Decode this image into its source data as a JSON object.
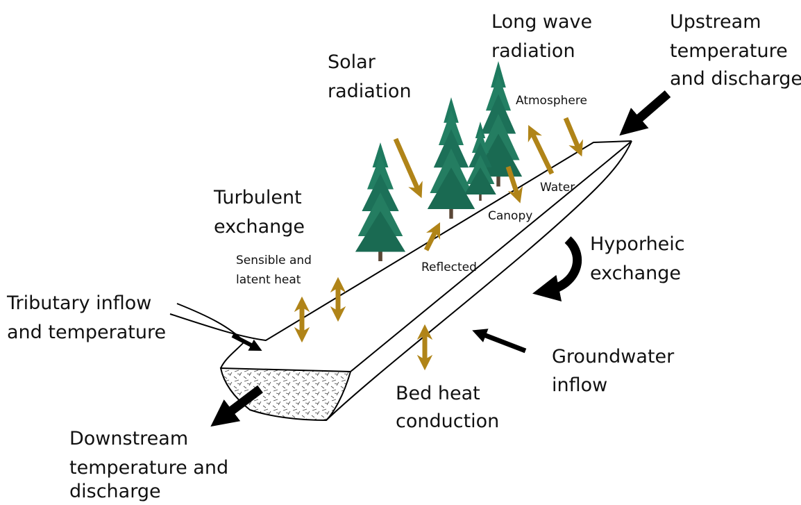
{
  "labels": [
    {
      "lines": [
        "Long wave",
        "radiation"
      ]
    },
    {
      "lines": [
        "Upstream",
        "temperature",
        "and discharge"
      ]
    },
    {
      "lines": [
        "Solar",
        "radiation"
      ]
    },
    {
      "lines": [
        "Atmosphere"
      ]
    },
    {
      "lines": [
        "Water"
      ]
    },
    {
      "lines": [
        "Canopy"
      ]
    },
    {
      "lines": [
        "Turbulent",
        "exchange"
      ]
    },
    {
      "lines": [
        "Sensible and",
        "latent heat"
      ]
    },
    {
      "lines": [
        "Reflected"
      ]
    },
    {
      "lines": [
        "Hyporheic",
        "exchange"
      ]
    },
    {
      "lines": [
        "Tributary inflow",
        "and temperature"
      ]
    },
    {
      "lines": [
        "Groundwater",
        "inflow"
      ]
    },
    {
      "lines": [
        "Bed heat",
        "conduction"
      ]
    },
    {
      "lines": [
        "Downstream",
        "temperature and",
        "discharge"
      ]
    }
  ]
}
